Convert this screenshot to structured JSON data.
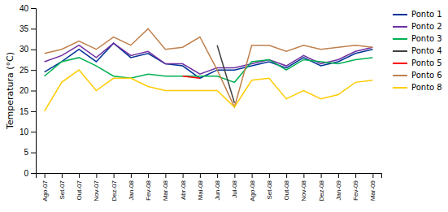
{
  "chart_data": {
    "type": "line",
    "ylabel": "Temperatura (°C)",
    "categories": [
      "Ago-07",
      "Set-07",
      "Out-07",
      "Nov-07",
      "Dez-07",
      "Jan-08",
      "Fev-08",
      "Mar-08",
      "Abr-08",
      "Mai-08",
      "Jun-08",
      "Jul-08",
      "Ago-08",
      "Set-08",
      "Out-08",
      "Nov-08",
      "Dez-08",
      "Jan-09",
      "Fev-09",
      "Mar-09"
    ],
    "series": [
      {
        "name": "Ponto 1",
        "color": "#003399",
        "values": [
          24.5,
          27.0,
          30.0,
          27.0,
          31.5,
          28.0,
          29.0,
          26.5,
          26.0,
          23.0,
          25.0,
          25.0,
          26.0,
          27.0,
          25.5,
          28.0,
          26.0,
          27.0,
          29.0,
          30.0
        ]
      },
      {
        "name": "Ponto 2",
        "color": "#7030A0",
        "values": [
          27.0,
          28.5,
          31.0,
          28.0,
          31.5,
          28.5,
          29.5,
          26.5,
          26.5,
          24.0,
          25.5,
          25.5,
          26.5,
          27.5,
          26.0,
          28.5,
          26.5,
          27.5,
          29.5,
          30.5
        ]
      },
      {
        "name": "Ponto 3",
        "color": "#00B050",
        "values": [
          23.5,
          27.0,
          28.0,
          26.0,
          23.5,
          23.0,
          24.0,
          23.5,
          23.5,
          23.5,
          23.5,
          22.0,
          27.0,
          27.5,
          25.0,
          27.5,
          27.0,
          26.5,
          27.5,
          28.0
        ]
      },
      {
        "name": "Ponto 4",
        "color": "#404040",
        "values": [
          null,
          null,
          null,
          null,
          null,
          null,
          null,
          null,
          null,
          null,
          31.0,
          17.0,
          null,
          null,
          null,
          null,
          null,
          null,
          null,
          null
        ]
      },
      {
        "name": "Ponto 5",
        "color": "#FF0000",
        "values": [
          null,
          null,
          null,
          null,
          null,
          null,
          null,
          null,
          23.5,
          23.0,
          null,
          null,
          null,
          null,
          null,
          null,
          null,
          null,
          null,
          null
        ]
      },
      {
        "name": "Ponto 6",
        "color": "#C0804C",
        "values": [
          29.0,
          30.0,
          32.0,
          30.0,
          33.0,
          31.0,
          35.0,
          30.0,
          30.5,
          33.0,
          25.0,
          16.0,
          31.0,
          31.0,
          29.5,
          31.0,
          30.0,
          30.5,
          31.0,
          30.5
        ]
      },
      {
        "name": "Ponto 8",
        "color": "#FFCC00",
        "values": [
          15.0,
          22.0,
          25.0,
          20.0,
          23.0,
          23.0,
          21.0,
          20.0,
          20.0,
          20.0,
          20.0,
          16.0,
          22.5,
          23.0,
          18.0,
          20.0,
          18.0,
          19.0,
          22.0,
          22.5
        ]
      }
    ],
    "ylim": [
      0,
      40
    ],
    "yticks": [
      0,
      5,
      10,
      15,
      20,
      25,
      30,
      35,
      40
    ],
    "grid": false,
    "legend": "right"
  }
}
